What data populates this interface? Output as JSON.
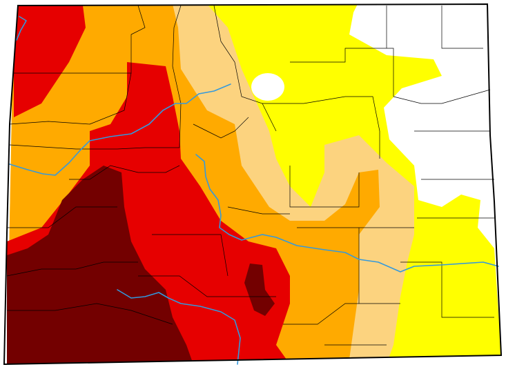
{
  "map": {
    "region": "Colorado",
    "kind": "drought-monitor",
    "legend_visible": false,
    "colors": {
      "none": "#ffffff",
      "d0": "#ffff00",
      "d1": "#fcd37f",
      "d2": "#ffaa00",
      "d3": "#e60000",
      "d4": "#730000",
      "river": "#3399dd",
      "border": "#000000"
    }
  }
}
